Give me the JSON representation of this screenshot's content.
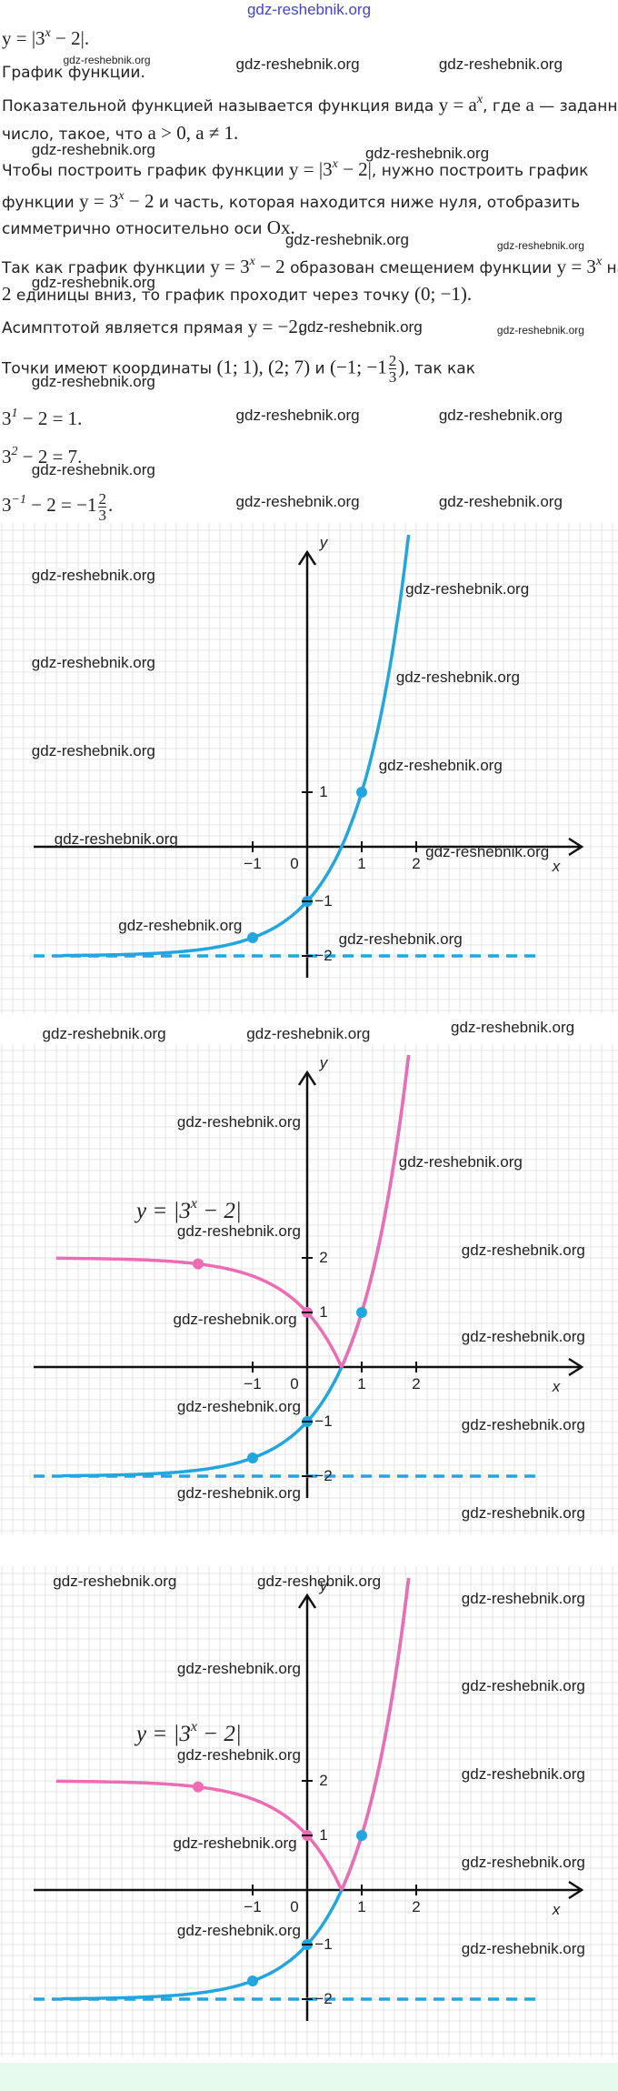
{
  "header": {
    "site": "gdz-reshebnik.org"
  },
  "watermark": "gdz-reshebnik.org",
  "lines": [
    [
      {
        "math": "y = |3"
      },
      {
        "sup": "x"
      },
      {
        "math": " − 2|."
      }
    ],
    [
      {
        "text": "График функции."
      }
    ],
    [
      {
        "text": "Показательной функцией называется функция вида "
      },
      {
        "math": "y = a"
      },
      {
        "sup": "x"
      },
      {
        "text": ", где "
      },
      {
        "math": "a"
      },
      {
        "text": " — заданное"
      }
    ],
    [
      {
        "text": "число, такое, что "
      },
      {
        "math": "a > 0, a ≠ 1."
      }
    ],
    [
      {
        "text": "Чтобы построить график функции "
      },
      {
        "math": "y = |3"
      },
      {
        "sup": "x"
      },
      {
        "math": " − 2|"
      },
      {
        "text": ", нужно построить график"
      }
    ],
    [
      {
        "text": "функции "
      },
      {
        "math": "y = 3"
      },
      {
        "sup": "x"
      },
      {
        "math": " − 2"
      },
      {
        "text": " и часть, которая находится ниже нуля, отобразить"
      }
    ],
    [
      {
        "text": "симметрично относительно оси "
      },
      {
        "math": "Ox."
      }
    ],
    [
      {
        "text": "Так как график функции "
      },
      {
        "math": "y = 3"
      },
      {
        "sup": "x"
      },
      {
        "math": " − 2"
      },
      {
        "text": " образован смещением функции "
      },
      {
        "math": "y = 3"
      },
      {
        "sup": "x"
      },
      {
        "text": " на"
      }
    ],
    [
      {
        "math": "2"
      },
      {
        "text": " единицы вниз, то график проходит через точку "
      },
      {
        "math": "(0; −1)."
      }
    ],
    [
      {
        "text": "Асимптотой является прямая "
      },
      {
        "math": "y = −2."
      }
    ],
    [
      {
        "text": "Точки имеют координаты "
      },
      {
        "math": "(1; 1), (2; 7)"
      },
      {
        "text": " и "
      },
      {
        "math": "(−1; −1"
      },
      {
        "num": "2",
        "den": "3"
      },
      {
        "math": ")"
      },
      {
        "text": ", так как"
      }
    ],
    [
      {
        "math": "3"
      },
      {
        "sup": "1"
      },
      {
        "math": " − 2 = 1."
      }
    ],
    [
      {
        "math": "3"
      },
      {
        "sup": "2"
      },
      {
        "math": " − 2 = 7."
      }
    ],
    [
      {
        "math": "3"
      },
      {
        "sup": "−1"
      },
      {
        "math": " − 2 = −1"
      },
      {
        "num": "2",
        "den": "3"
      },
      {
        "math": "."
      }
    ]
  ],
  "graphs": [
    {
      "x_ticks": [
        "−1",
        "0",
        "1",
        "2"
      ],
      "y_ticks": [
        "1",
        "−1",
        "−2"
      ],
      "x_label": "x",
      "y_label": "y"
    },
    {
      "x_ticks": [
        "−1",
        "0",
        "1",
        "2"
      ],
      "y_ticks": [
        "2",
        "1",
        "−1",
        "−2"
      ],
      "x_label": "x",
      "y_label": "y",
      "equation": [
        {
          "math": "y = |3"
        },
        {
          "sup": "x"
        },
        {
          "math": " − 2|"
        }
      ]
    },
    {
      "x_ticks": [
        "−1",
        "0",
        "1",
        "2"
      ],
      "y_ticks": [
        "2",
        "1",
        "−1",
        "−2"
      ],
      "x_label": "x",
      "y_label": "y",
      "equation": [
        {
          "math": "y = |3"
        },
        {
          "sup": "x"
        },
        {
          "math": " − 2|"
        }
      ]
    }
  ]
}
